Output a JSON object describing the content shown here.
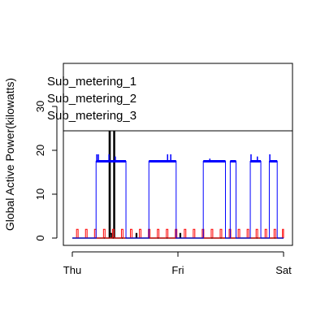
{
  "chart_data": {
    "type": "line",
    "title": "",
    "xlabel": "",
    "ylabel": "Global Active Power(kilowatts)",
    "x_range_days": [
      0,
      2
    ],
    "ylim": [
      -1.5,
      40
    ],
    "yticks": [
      0,
      10,
      20,
      30
    ],
    "xticks": [
      {
        "value": 0,
        "label": "Thu"
      },
      {
        "value": 1,
        "label": "Fri"
      },
      {
        "value": 2,
        "label": "Sat"
      }
    ],
    "legend": {
      "placement": "top-right",
      "entries": [
        "Sub_metering_1",
        "Sub_metering_2",
        "Sub_metering_3"
      ]
    },
    "series": [
      {
        "name": "Sub_metering_1",
        "color": "#000000",
        "baseline": 0,
        "pulses": [
          {
            "start": 0.35,
            "end": 0.358,
            "value": 38
          },
          {
            "start": 0.36,
            "end": 0.375,
            "value": 1
          },
          {
            "start": 0.393,
            "end": 0.4,
            "value": 38
          },
          {
            "start": 0.605,
            "end": 0.61,
            "value": 1
          },
          {
            "start": 1.02,
            "end": 1.025,
            "value": 1
          }
        ]
      },
      {
        "name": "Sub_metering_2",
        "color": "#ff0000",
        "baseline": 0,
        "pulses": [
          {
            "start": 0.04,
            "end": 0.055,
            "value": 2
          },
          {
            "start": 0.125,
            "end": 0.14,
            "value": 2
          },
          {
            "start": 0.21,
            "end": 0.225,
            "value": 2
          },
          {
            "start": 0.295,
            "end": 0.31,
            "value": 2
          },
          {
            "start": 0.38,
            "end": 0.395,
            "value": 2
          },
          {
            "start": 0.465,
            "end": 0.48,
            "value": 2
          },
          {
            "start": 0.55,
            "end": 0.565,
            "value": 2
          },
          {
            "start": 0.635,
            "end": 0.65,
            "value": 2
          },
          {
            "start": 0.72,
            "end": 0.735,
            "value": 2
          },
          {
            "start": 0.805,
            "end": 0.82,
            "value": 2
          },
          {
            "start": 0.89,
            "end": 0.905,
            "value": 2
          },
          {
            "start": 0.975,
            "end": 0.99,
            "value": 2
          },
          {
            "start": 1.06,
            "end": 1.075,
            "value": 2
          },
          {
            "start": 1.145,
            "end": 1.16,
            "value": 2
          },
          {
            "start": 1.23,
            "end": 1.245,
            "value": 2
          },
          {
            "start": 1.315,
            "end": 1.33,
            "value": 2
          },
          {
            "start": 1.4,
            "end": 1.415,
            "value": 2
          },
          {
            "start": 1.485,
            "end": 1.5,
            "value": 2
          },
          {
            "start": 1.57,
            "end": 1.585,
            "value": 2
          },
          {
            "start": 1.655,
            "end": 1.67,
            "value": 2
          },
          {
            "start": 1.74,
            "end": 1.755,
            "value": 2
          },
          {
            "start": 1.825,
            "end": 1.84,
            "value": 2
          },
          {
            "start": 1.91,
            "end": 1.925,
            "value": 2
          },
          {
            "start": 1.99,
            "end": 2.0,
            "value": 2
          }
        ]
      },
      {
        "name": "Sub_metering_3",
        "color": "#0000ff",
        "baseline": 0,
        "blocks": [
          {
            "start": 0.225,
            "end": 0.508,
            "level": 17.5,
            "peaks": [
              {
                "at": 0.23,
                "value": 19
              },
              {
                "at": 0.245,
                "value": 19
              },
              {
                "at": 0.345,
                "value": 19
              },
              {
                "at": 0.405,
                "value": 18.5
              }
            ]
          },
          {
            "start": 0.725,
            "end": 0.983,
            "level": 17.5,
            "peaks": [
              {
                "at": 0.9,
                "value": 19
              },
              {
                "at": 0.93,
                "value": 19
              }
            ]
          },
          {
            "start": 1.24,
            "end": 1.45,
            "level": 17.5,
            "peaks": [
              {
                "at": 1.3,
                "value": 18
              }
            ]
          },
          {
            "start": 1.495,
            "end": 1.55,
            "level": 17.5,
            "peaks": []
          },
          {
            "start": 1.685,
            "end": 1.785,
            "level": 17.5,
            "peaks": [
              {
                "at": 1.69,
                "value": 19
              },
              {
                "at": 1.75,
                "value": 18.5
              }
            ]
          },
          {
            "start": 1.865,
            "end": 1.94,
            "level": 17.5,
            "peaks": [
              {
                "at": 1.868,
                "value": 19
              }
            ]
          }
        ]
      }
    ]
  }
}
